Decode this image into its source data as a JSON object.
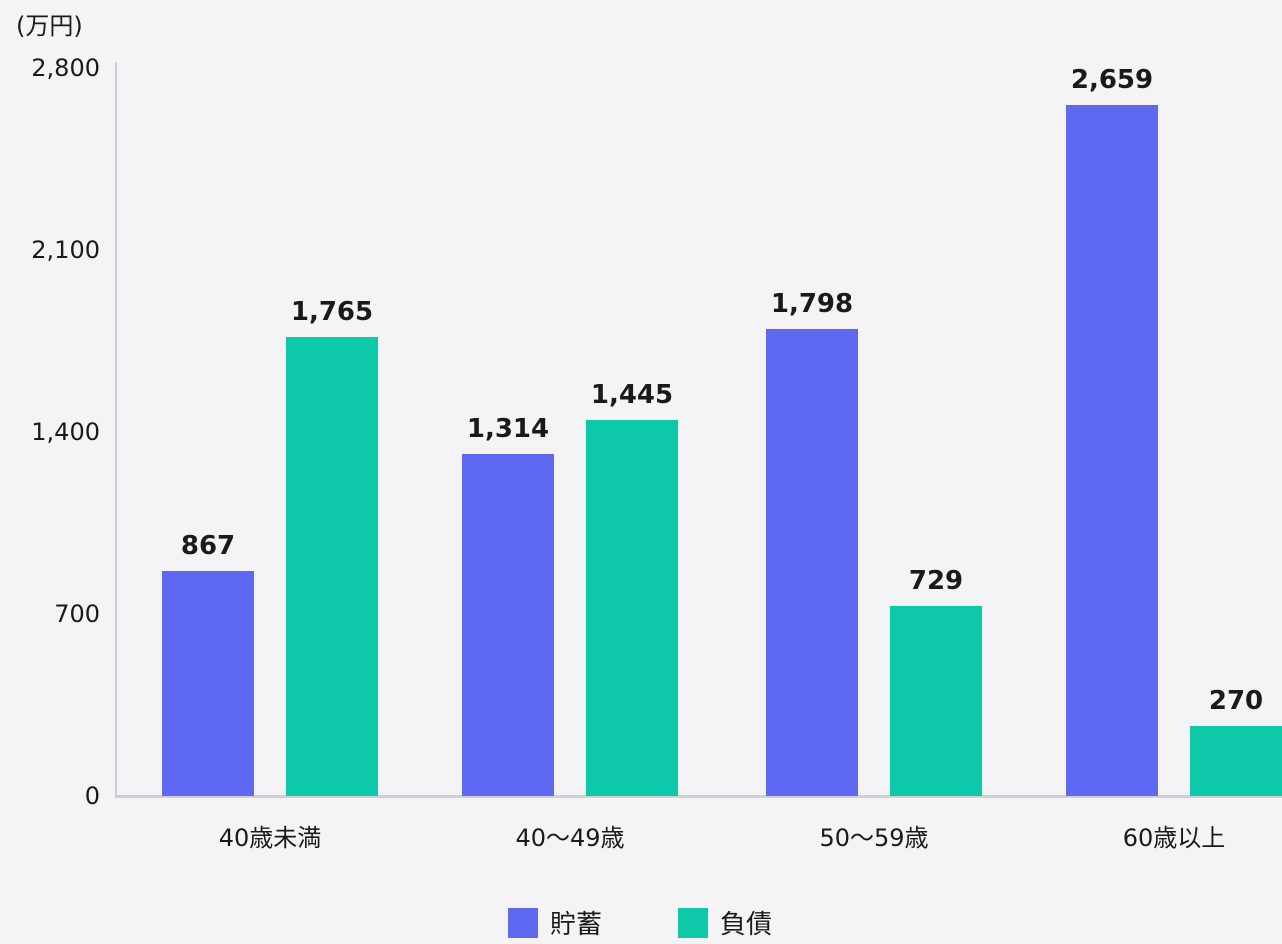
{
  "chart_data": {
    "type": "bar",
    "title": "",
    "ylabel": "(万円)",
    "xlabel": "",
    "ylim": [
      0,
      2800
    ],
    "yticks": [
      0,
      700,
      1400,
      2100,
      2800
    ],
    "ytick_labels": [
      "0",
      "700",
      "1,400",
      "2,100",
      "2,800"
    ],
    "categories": [
      "40歳未満",
      "40〜49歳",
      "50〜59歳",
      "60歳以上"
    ],
    "series": [
      {
        "name": "貯蓄",
        "color": "#5f68f0",
        "values": [
          867,
          1314,
          1798,
          2659
        ],
        "labels": [
          "867",
          "1,314",
          "1,798",
          "2,659"
        ]
      },
      {
        "name": "負債",
        "color": "#0ec8aa",
        "values": [
          1765,
          1445,
          729,
          270
        ],
        "labels": [
          "1,765",
          "1,445",
          "729",
          "270"
        ]
      }
    ],
    "legend_position": "bottom",
    "grid": false
  }
}
